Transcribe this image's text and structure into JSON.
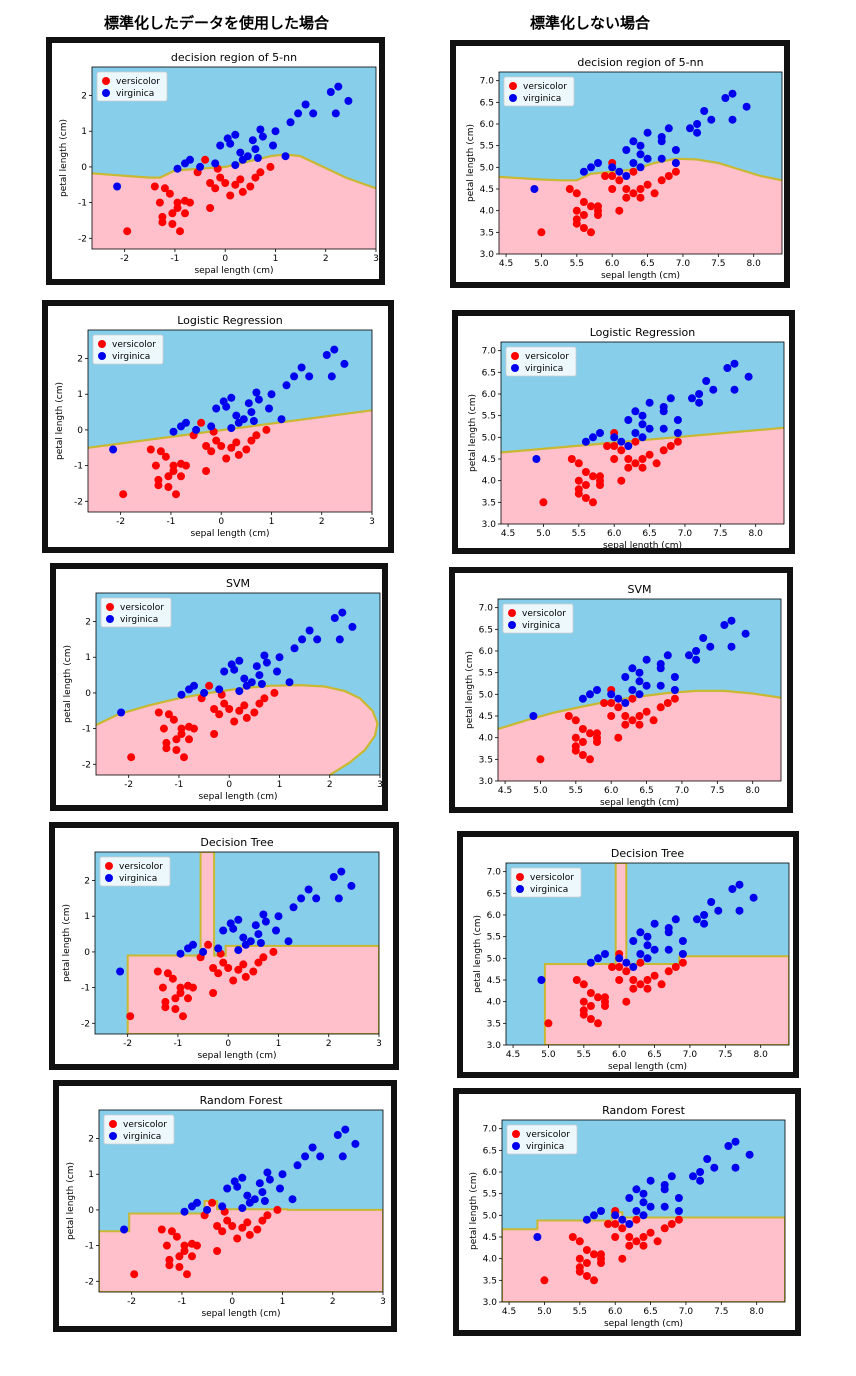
{
  "headers": {
    "left": "標準化したデータを使用した場合",
    "right": "標準化しない場合"
  },
  "colors": {
    "region_versicolor": "#ffc0cb",
    "region_virginica": "#87ceeb",
    "boundary": "#c8b832",
    "versicolor": "#ff0000",
    "virginica": "#0000ee"
  },
  "chart_data": [
    {
      "type": "scatter",
      "title": "decision region of 5-nn",
      "xlabel": "sepal length (cm)",
      "ylabel": "petal length (cm)",
      "xlim": [
        -2.65,
        3.0
      ],
      "ylim": [
        -2.3,
        2.8
      ],
      "xticks": [
        -2,
        -1,
        0,
        1,
        2,
        3
      ],
      "yticks": [
        -2,
        -1,
        0,
        1,
        2
      ],
      "legend": [
        "versicolor",
        "virginica"
      ],
      "legend_position": "top-left",
      "boundary": [
        [
          -2.65,
          -0.18
        ],
        [
          -2.0,
          -0.25
        ],
        [
          -1.5,
          -0.3
        ],
        [
          -1.3,
          -0.3
        ],
        [
          -1.0,
          -0.1
        ],
        [
          -0.5,
          -0.05
        ],
        [
          0.0,
          0.0
        ],
        [
          0.3,
          0.1
        ],
        [
          0.6,
          0.2
        ],
        [
          0.9,
          0.3
        ],
        [
          1.2,
          0.35
        ],
        [
          1.5,
          0.3
        ],
        [
          1.8,
          0.1
        ],
        [
          2.1,
          -0.1
        ],
        [
          2.4,
          -0.3
        ],
        [
          2.7,
          -0.45
        ],
        [
          3.0,
          -0.6
        ]
      ]
    },
    {
      "type": "scatter",
      "title": "decision region of 5-nn",
      "xlabel": "sepal length (cm)",
      "ylabel": "petal length (cm)",
      "xlim": [
        4.4,
        8.4
      ],
      "ylim": [
        3.0,
        7.2
      ],
      "xticks": [
        4.5,
        5.0,
        5.5,
        6.0,
        6.5,
        7.0,
        7.5,
        8.0
      ],
      "yticks": [
        3.0,
        3.5,
        4.0,
        4.5,
        5.0,
        5.5,
        6.0,
        6.5,
        7.0
      ],
      "legend": [
        "versicolor",
        "virginica"
      ],
      "legend_position": "top-left",
      "boundary": [
        [
          4.4,
          4.78
        ],
        [
          5.0,
          4.72
        ],
        [
          5.3,
          4.7
        ],
        [
          5.5,
          4.7
        ],
        [
          5.7,
          4.85
        ],
        [
          6.0,
          4.9
        ],
        [
          6.3,
          4.95
        ],
        [
          6.6,
          5.1
        ],
        [
          6.9,
          5.2
        ],
        [
          7.2,
          5.18
        ],
        [
          7.5,
          5.1
        ],
        [
          7.8,
          4.95
        ],
        [
          8.1,
          4.8
        ],
        [
          8.4,
          4.7
        ]
      ]
    },
    {
      "type": "scatter",
      "title": "Logistic Regression",
      "xlabel": "sepal length (cm)",
      "ylabel": "petal length (cm)",
      "xlim": [
        -2.65,
        3.0
      ],
      "ylim": [
        -2.3,
        2.8
      ],
      "xticks": [
        -2,
        -1,
        0,
        1,
        2,
        3
      ],
      "yticks": [
        -2,
        -1,
        0,
        1,
        2
      ],
      "legend": [
        "versicolor",
        "virginica"
      ],
      "legend_position": "top-left",
      "boundary": [
        [
          -2.65,
          -0.5
        ],
        [
          3.0,
          0.55
        ]
      ]
    },
    {
      "type": "scatter",
      "title": "Logistic Regression",
      "xlabel": "sepal length (cm)",
      "ylabel": "petal length (cm)",
      "xlim": [
        4.4,
        8.4
      ],
      "ylim": [
        3.0,
        7.2
      ],
      "xticks": [
        4.5,
        5.0,
        5.5,
        6.0,
        6.5,
        7.0,
        7.5,
        8.0
      ],
      "yticks": [
        3.0,
        3.5,
        4.0,
        4.5,
        5.0,
        5.5,
        6.0,
        6.5,
        7.0
      ],
      "legend": [
        "versicolor",
        "virginica"
      ],
      "legend_position": "top-left",
      "boundary": [
        [
          4.4,
          4.65
        ],
        [
          8.4,
          5.22
        ]
      ]
    },
    {
      "type": "scatter",
      "title": "SVM",
      "xlabel": "sepal length (cm)",
      "ylabel": "petal length (cm)",
      "xlim": [
        -2.65,
        3.0
      ],
      "ylim": [
        -2.3,
        2.8
      ],
      "xticks": [
        -2,
        -1,
        0,
        1,
        2,
        3
      ],
      "yticks": [
        -2,
        -1,
        0,
        1,
        2
      ],
      "legend": [
        "versicolor",
        "virginica"
      ],
      "legend_position": "top-left",
      "boundary": [
        [
          -2.65,
          -0.9
        ],
        [
          -2.2,
          -0.6
        ],
        [
          -1.6,
          -0.35
        ],
        [
          -1.0,
          -0.15
        ],
        [
          -0.4,
          0.0
        ],
        [
          0.2,
          0.12
        ],
        [
          0.8,
          0.2
        ],
        [
          1.4,
          0.22
        ],
        [
          1.9,
          0.18
        ],
        [
          2.3,
          0.05
        ],
        [
          2.6,
          -0.15
        ],
        [
          2.85,
          -0.5
        ],
        [
          2.95,
          -0.85
        ],
        [
          2.9,
          -1.2
        ],
        [
          2.7,
          -1.6
        ],
        [
          2.4,
          -1.95
        ],
        [
          2.0,
          -2.3
        ]
      ]
    },
    {
      "type": "scatter",
      "title": "SVM",
      "xlabel": "sepal length (cm)",
      "ylabel": "petal length (cm)",
      "xlim": [
        4.4,
        8.4
      ],
      "ylim": [
        3.0,
        7.2
      ],
      "xticks": [
        4.5,
        5.0,
        5.5,
        6.0,
        6.5,
        7.0,
        7.5,
        8.0
      ],
      "yticks": [
        3.0,
        3.5,
        4.0,
        4.5,
        5.0,
        5.5,
        6.0,
        6.5,
        7.0
      ],
      "legend": [
        "versicolor",
        "virginica"
      ],
      "legend_position": "top-left",
      "boundary": [
        [
          4.4,
          4.2
        ],
        [
          4.8,
          4.4
        ],
        [
          5.2,
          4.58
        ],
        [
          5.6,
          4.72
        ],
        [
          6.0,
          4.85
        ],
        [
          6.4,
          4.95
        ],
        [
          6.8,
          5.03
        ],
        [
          7.2,
          5.08
        ],
        [
          7.6,
          5.08
        ],
        [
          8.0,
          5.02
        ],
        [
          8.4,
          4.92
        ]
      ]
    },
    {
      "type": "scatter",
      "title": "Decision Tree",
      "xlabel": "sepal length (cm)",
      "ylabel": "petal length (cm)",
      "xlim": [
        -2.65,
        3.0
      ],
      "ylim": [
        -2.3,
        2.8
      ],
      "xticks": [
        -2,
        -1,
        0,
        1,
        2,
        3
      ],
      "yticks": [
        -2,
        -1,
        0,
        1,
        2
      ],
      "legend": [
        "versicolor",
        "virginica"
      ],
      "legend_position": "top-left",
      "region_polygon": [
        [
          -2.0,
          -2.3
        ],
        [
          -2.0,
          -0.1
        ],
        [
          -0.55,
          -0.1
        ],
        [
          -0.55,
          2.8
        ],
        [
          -0.28,
          2.8
        ],
        [
          -0.28,
          -0.1
        ],
        [
          -0.05,
          -0.1
        ],
        [
          -0.05,
          0.17
        ],
        [
          3.0,
          0.17
        ],
        [
          3.0,
          -2.3
        ]
      ]
    },
    {
      "type": "scatter",
      "title": "Decision Tree",
      "xlabel": "sepal length (cm)",
      "ylabel": "petal length (cm)",
      "xlim": [
        4.4,
        8.4
      ],
      "ylim": [
        3.0,
        7.2
      ],
      "xticks": [
        4.5,
        5.0,
        5.5,
        6.0,
        6.5,
        7.0,
        7.5,
        8.0
      ],
      "yticks": [
        3.0,
        3.5,
        4.0,
        4.5,
        5.0,
        5.5,
        6.0,
        6.5,
        7.0
      ],
      "legend": [
        "versicolor",
        "virginica"
      ],
      "legend_position": "top-left",
      "region_polygon": [
        [
          4.95,
          3.0
        ],
        [
          4.95,
          4.87
        ],
        [
          5.95,
          4.87
        ],
        [
          5.95,
          7.2
        ],
        [
          6.1,
          7.2
        ],
        [
          6.1,
          4.87
        ],
        [
          6.85,
          4.87
        ],
        [
          6.85,
          5.05
        ],
        [
          8.4,
          5.05
        ],
        [
          8.4,
          3.0
        ]
      ]
    },
    {
      "type": "scatter",
      "title": "Random Forest",
      "xlabel": "sepal length (cm)",
      "ylabel": "petal length (cm)",
      "xlim": [
        -2.65,
        3.0
      ],
      "ylim": [
        -2.3,
        2.8
      ],
      "xticks": [
        -2,
        -1,
        0,
        1,
        2,
        3
      ],
      "yticks": [
        -2,
        -1,
        0,
        1,
        2
      ],
      "legend": [
        "versicolor",
        "virginica"
      ],
      "legend_position": "top-left",
      "region_polygon": [
        [
          -2.65,
          -2.3
        ],
        [
          -2.65,
          -0.6
        ],
        [
          -2.05,
          -0.6
        ],
        [
          -2.05,
          -0.1
        ],
        [
          -0.55,
          -0.1
        ],
        [
          -0.55,
          0.25
        ],
        [
          -0.3,
          0.25
        ],
        [
          -0.3,
          0.02
        ],
        [
          1.1,
          0.02
        ],
        [
          1.1,
          0.0
        ],
        [
          3.0,
          0.0
        ],
        [
          3.0,
          -2.3
        ]
      ]
    },
    {
      "type": "scatter",
      "title": "Random Forest",
      "xlabel": "sepal length (cm)",
      "ylabel": "petal length (cm)",
      "xlim": [
        4.4,
        8.4
      ],
      "ylim": [
        3.0,
        7.2
      ],
      "xticks": [
        4.5,
        5.0,
        5.5,
        6.0,
        6.5,
        7.0,
        7.5,
        8.0
      ],
      "yticks": [
        3.0,
        3.5,
        4.0,
        4.5,
        5.0,
        5.5,
        6.0,
        6.5,
        7.0
      ],
      "legend": [
        "versicolor",
        "virginica"
      ],
      "legend_position": "top-left",
      "region_polygon": [
        [
          4.4,
          3.0
        ],
        [
          4.4,
          4.68
        ],
        [
          4.9,
          4.68
        ],
        [
          4.9,
          4.88
        ],
        [
          5.95,
          4.88
        ],
        [
          5.95,
          5.07
        ],
        [
          6.1,
          5.07
        ],
        [
          6.1,
          4.95
        ],
        [
          8.4,
          4.95
        ],
        [
          8.4,
          3.0
        ]
      ]
    }
  ],
  "points_standardized": {
    "versicolor": [
      [
        -1.95,
        -1.8
      ],
      [
        -1.4,
        -0.55
      ],
      [
        -1.2,
        -0.6
      ],
      [
        -1.1,
        -0.75
      ],
      [
        -1.3,
        -1.0
      ],
      [
        -1.25,
        -1.4
      ],
      [
        -1.25,
        -1.55
      ],
      [
        -1.05,
        -1.3
      ],
      [
        -1.05,
        -1.6
      ],
      [
        -0.95,
        -1.0
      ],
      [
        -0.9,
        -1.8
      ],
      [
        -0.8,
        -1.3
      ],
      [
        -0.8,
        -0.95
      ],
      [
        -0.7,
        -1.0
      ],
      [
        -0.95,
        -1.15
      ],
      [
        -0.55,
        -0.15
      ],
      [
        -0.4,
        0.2
      ],
      [
        -0.3,
        -0.45
      ],
      [
        -0.3,
        -1.15
      ],
      [
        -0.2,
        -0.6
      ],
      [
        -0.1,
        -0.3
      ],
      [
        0.0,
        -0.45
      ],
      [
        0.1,
        -0.8
      ],
      [
        0.2,
        -0.5
      ],
      [
        0.3,
        -0.35
      ],
      [
        0.35,
        -0.7
      ],
      [
        0.5,
        -0.55
      ],
      [
        0.6,
        -0.3
      ],
      [
        0.7,
        -0.15
      ],
      [
        0.9,
        0.0
      ],
      [
        -0.15,
        -0.05
      ]
    ],
    "virginica": [
      [
        -2.15,
        -0.55
      ],
      [
        -0.95,
        -0.05
      ],
      [
        -0.8,
        0.1
      ],
      [
        -0.7,
        0.2
      ],
      [
        -0.5,
        0.0
      ],
      [
        -0.2,
        0.1
      ],
      [
        -0.1,
        0.6
      ],
      [
        0.05,
        0.8
      ],
      [
        0.1,
        0.65
      ],
      [
        0.2,
        0.9
      ],
      [
        0.3,
        0.4
      ],
      [
        0.35,
        0.2
      ],
      [
        0.45,
        0.3
      ],
      [
        0.55,
        0.75
      ],
      [
        0.6,
        0.5
      ],
      [
        0.7,
        1.05
      ],
      [
        0.75,
        0.85
      ],
      [
        0.95,
        0.6
      ],
      [
        1.0,
        1.0
      ],
      [
        1.2,
        0.3
      ],
      [
        1.3,
        1.25
      ],
      [
        1.45,
        1.5
      ],
      [
        1.6,
        1.75
      ],
      [
        1.75,
        1.5
      ],
      [
        2.1,
        2.1
      ],
      [
        2.25,
        2.25
      ],
      [
        2.45,
        1.85
      ],
      [
        2.2,
        1.5
      ],
      [
        0.65,
        0.25
      ],
      [
        0.2,
        0.05
      ]
    ]
  },
  "points_raw": {
    "versicolor": [
      [
        5.0,
        3.5
      ],
      [
        5.4,
        4.5
      ],
      [
        5.5,
        4.4
      ],
      [
        5.5,
        4.0
      ],
      [
        5.6,
        3.9
      ],
      [
        5.6,
        4.2
      ],
      [
        5.7,
        4.1
      ],
      [
        5.7,
        3.5
      ],
      [
        5.8,
        4.0
      ],
      [
        5.8,
        3.9
      ],
      [
        5.8,
        4.1
      ],
      [
        5.5,
        3.8
      ],
      [
        5.5,
        3.7
      ],
      [
        5.6,
        3.6
      ],
      [
        6.0,
        4.5
      ],
      [
        6.0,
        5.1
      ],
      [
        6.1,
        4.7
      ],
      [
        6.1,
        4.0
      ],
      [
        6.2,
        4.5
      ],
      [
        6.2,
        4.3
      ],
      [
        6.3,
        4.9
      ],
      [
        6.3,
        4.4
      ],
      [
        6.4,
        4.3
      ],
      [
        6.5,
        4.6
      ],
      [
        6.6,
        4.4
      ],
      [
        6.7,
        4.7
      ],
      [
        6.8,
        4.8
      ],
      [
        6.9,
        4.9
      ],
      [
        5.9,
        4.8
      ],
      [
        6.0,
        4.8
      ],
      [
        6.4,
        4.5
      ]
    ],
    "virginica": [
      [
        4.9,
        4.5
      ],
      [
        5.6,
        4.9
      ],
      [
        5.7,
        5.0
      ],
      [
        5.8,
        5.1
      ],
      [
        6.0,
        5.0
      ],
      [
        6.1,
        4.9
      ],
      [
        6.2,
        5.4
      ],
      [
        6.3,
        5.6
      ],
      [
        6.3,
        5.1
      ],
      [
        6.4,
        5.5
      ],
      [
        6.4,
        5.3
      ],
      [
        6.5,
        5.2
      ],
      [
        6.5,
        5.8
      ],
      [
        6.7,
        5.7
      ],
      [
        6.7,
        5.6
      ],
      [
        6.7,
        5.2
      ],
      [
        6.8,
        5.9
      ],
      [
        6.9,
        5.4
      ],
      [
        7.1,
        5.9
      ],
      [
        7.2,
        6.0
      ],
      [
        7.3,
        6.3
      ],
      [
        7.4,
        6.1
      ],
      [
        7.6,
        6.6
      ],
      [
        7.7,
        6.7
      ],
      [
        7.7,
        6.1
      ],
      [
        7.9,
        6.4
      ],
      [
        6.2,
        4.8
      ],
      [
        6.4,
        5.0
      ],
      [
        6.9,
        5.1
      ],
      [
        7.2,
        5.8
      ]
    ]
  }
}
